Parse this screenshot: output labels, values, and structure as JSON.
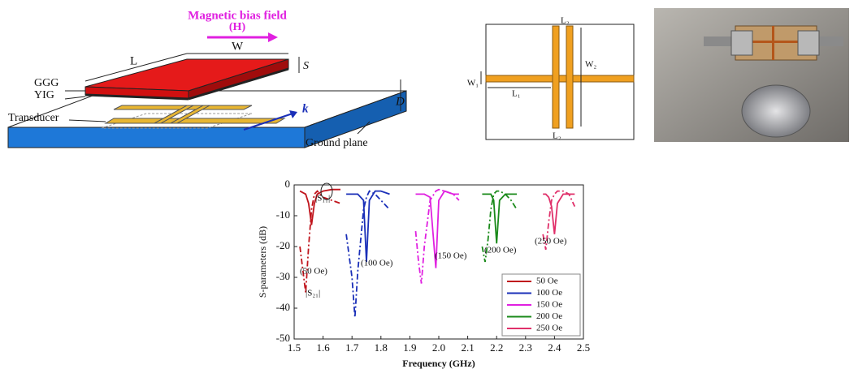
{
  "diagram": {
    "field_label": "Magnetic bias field",
    "field_symbol": "(H)",
    "L": "L",
    "W": "W",
    "S": "S",
    "GGG": "GGG",
    "YIG": "YIG",
    "D": "D",
    "k": "k",
    "transducer": "Transducer",
    "ground_plane": "Ground plane"
  },
  "schematic": {
    "labels": [
      "L₂",
      "W₁",
      "L₁",
      "W₂",
      "L₂"
    ]
  },
  "chart_data": {
    "type": "line",
    "x_label": "Frequency (GHz)",
    "y_label": "S-parameters (dB)",
    "xlim": [
      1.5,
      2.5
    ],
    "xticks": [
      1.5,
      1.6,
      1.7,
      1.8,
      1.9,
      {
        "value": 2,
        "label": "2.0"
      },
      2.1,
      2.2,
      2.3,
      2.4,
      2.5
    ],
    "ylim": [
      -50,
      0
    ],
    "yticks": [
      0,
      -10,
      -20,
      -30,
      -40,
      -50
    ],
    "legend": "lower right",
    "series": [
      {
        "name": "50 Oe",
        "color": "#c0141c",
        "x": [
          1.52,
          1.54,
          1.55,
          1.56,
          1.57,
          1.58,
          1.6,
          1.63,
          1.66
        ],
        "values": [
          -2,
          -3,
          -6,
          -13,
          -6,
          -3,
          -2,
          -1.5,
          -1.5
        ],
        "values_s11": [
          -20,
          -35,
          -20,
          -8,
          -3,
          -2,
          -4,
          -5,
          -6
        ]
      },
      {
        "name": "100 Oe",
        "color": "#1a2fb8",
        "x": [
          1.68,
          1.7,
          1.71,
          1.72,
          1.74,
          1.75,
          1.76,
          1.78,
          1.8,
          1.83
        ],
        "values": [
          -3,
          -3,
          -3,
          -3,
          -5,
          -25,
          -5,
          -2,
          -2,
          -3
        ],
        "values_s11": [
          -16,
          -30,
          -43,
          -28,
          -8,
          -4,
          -2,
          -3,
          -5,
          -8
        ]
      },
      {
        "name": "150 Oe",
        "color": "#e020e0",
        "x": [
          1.92,
          1.93,
          1.94,
          1.95,
          1.97,
          1.99,
          2.0,
          2.02,
          2.05,
          2.07
        ],
        "values": [
          -3,
          -3,
          -3,
          -3,
          -4,
          -27,
          -5,
          -2,
          -3,
          -3
        ],
        "values_s11": [
          -15,
          -25,
          -32,
          -20,
          -5,
          -2,
          -1.5,
          -2,
          -3,
          -5
        ]
      },
      {
        "name": "200 Oe",
        "color": "#1a8a1a",
        "x": [
          2.15,
          2.16,
          2.17,
          2.18,
          2.19,
          2.2,
          2.21,
          2.23,
          2.25,
          2.27
        ],
        "values": [
          -3,
          -3,
          -3,
          -3,
          -5,
          -19,
          -5,
          -3,
          -3,
          -3
        ],
        "values_s11": [
          -20,
          -25,
          -18,
          -8,
          -3,
          -2,
          -2,
          -3,
          -5,
          -8
        ]
      },
      {
        "name": "250 Oe",
        "color": "#e0306a",
        "x": [
          2.36,
          2.37,
          2.38,
          2.39,
          2.4,
          2.41,
          2.43,
          2.45,
          2.47
        ],
        "values": [
          -3,
          -3,
          -4,
          -7,
          -16,
          -6,
          -3,
          -3,
          -3
        ],
        "values_s11": [
          -16,
          -21,
          -12,
          -5,
          -3,
          -2,
          -2,
          -3,
          -7
        ]
      }
    ],
    "annotations": [
      "(50 Oe)",
      "(100 Oe)",
      "(150 Oe)",
      "(200 Oe)",
      "(250 Oe)",
      "|S₁₁|",
      "|S₂₁|"
    ]
  }
}
